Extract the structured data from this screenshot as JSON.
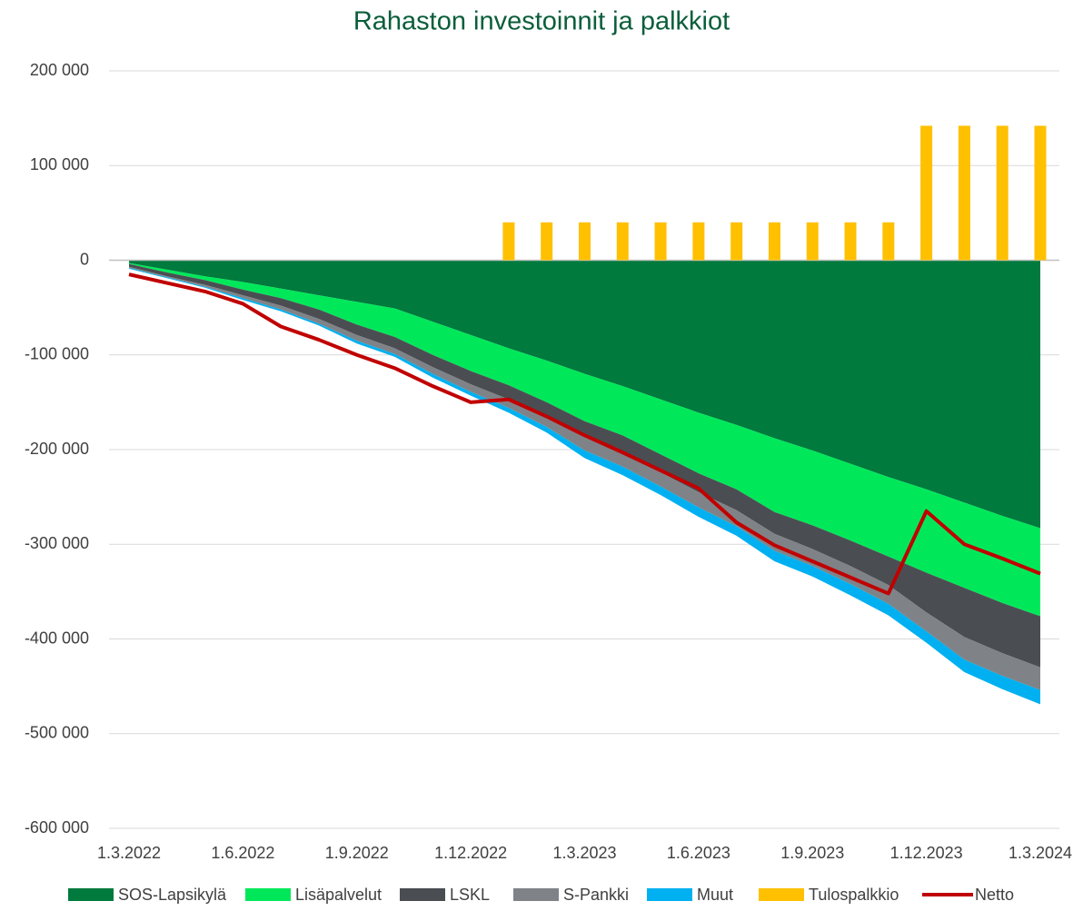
{
  "chart_data": {
    "type": "stacked_area_bar_line",
    "title": "Rahaston investoinnit ja palkkiot",
    "categories": [
      "1.3.2022",
      null,
      null,
      "1.6.2022",
      null,
      null,
      "1.9.2022",
      null,
      null,
      "1.12.2022",
      null,
      null,
      "1.3.2023",
      null,
      null,
      "1.6.2023",
      null,
      null,
      "1.9.2023",
      null,
      null,
      "1.12.2023",
      null,
      null,
      "1.3.2024"
    ],
    "ylim": [
      -600000,
      200000
    ],
    "yticks": [
      {
        "value": -600000,
        "label": "-600 000"
      },
      {
        "value": -500000,
        "label": "-500 000"
      },
      {
        "value": -400000,
        "label": "-400 000"
      },
      {
        "value": -300000,
        "label": "-300 000"
      },
      {
        "value": -200000,
        "label": "-200 000"
      },
      {
        "value": -100000,
        "label": "-100 000"
      },
      0,
      {
        "value": 100000,
        "label": "100 000"
      },
      {
        "value": 200000,
        "label": "200 000"
      }
    ],
    "grid": true,
    "series": [
      {
        "name": "SOS-Lapsikylä",
        "kind": "area",
        "color": "#007a3d",
        "values": [
          -3000,
          -10000,
          -17000,
          -23000,
          -30000,
          -37000,
          -44000,
          -51000,
          -65000,
          -79000,
          -93000,
          -106000,
          -120000,
          -133000,
          -147000,
          -161000,
          -174000,
          -188000,
          -201000,
          -215000,
          -229000,
          -242000,
          -256000,
          -270000,
          -283000
        ]
      },
      {
        "name": "Lisäpalvelut",
        "kind": "area",
        "color": "#00e85a",
        "values": [
          -1000,
          -3000,
          -4000,
          -8000,
          -10000,
          -15000,
          -24000,
          -30000,
          -35000,
          -38000,
          -39000,
          -44000,
          -50000,
          -52000,
          -58000,
          -64000,
          -68000,
          -78000,
          -79000,
          -81000,
          -84000,
          -88000,
          -90000,
          -92000,
          -93000
        ]
      },
      {
        "name": "LSKL",
        "kind": "area",
        "color": "#4a4e52",
        "values": [
          -3000,
          -4000,
          -5000,
          -6000,
          -8000,
          -10000,
          -11000,
          -12000,
          -13000,
          -14000,
          -15000,
          -16000,
          -17000,
          -18000,
          -19000,
          -20000,
          -22000,
          -23000,
          -25000,
          -27000,
          -30000,
          -42000,
          -52000,
          -53000,
          -54000
        ]
      },
      {
        "name": "S-Pankki",
        "kind": "area",
        "color": "#7f8387",
        "values": [
          -1000,
          -1000,
          -2000,
          -3000,
          -4000,
          -5000,
          -6000,
          -6000,
          -7000,
          -8000,
          -9000,
          -10000,
          -14000,
          -15000,
          -15000,
          -16000,
          -17000,
          -18000,
          -18000,
          -19000,
          -20000,
          -20000,
          -24000,
          -24000,
          -24000
        ]
      },
      {
        "name": "Muut",
        "kind": "area",
        "color": "#00b0f0",
        "values": [
          -1000,
          -1000,
          -1000,
          -2000,
          -2000,
          -2000,
          -3000,
          -3000,
          -4000,
          -4000,
          -5000,
          -6000,
          -8000,
          -9000,
          -9000,
          -10000,
          -10000,
          -11000,
          -11000,
          -12000,
          -12000,
          -12000,
          -13000,
          -14000,
          -15000
        ]
      },
      {
        "name": "Tulospalkkio",
        "kind": "bar",
        "color": "#ffc000",
        "values": [
          0,
          0,
          0,
          0,
          0,
          0,
          0,
          0,
          0,
          0,
          40000,
          40000,
          40000,
          40000,
          40000,
          40000,
          40000,
          40000,
          40000,
          40000,
          40000,
          142000,
          142000,
          142000,
          142000
        ]
      },
      {
        "name": "Netto",
        "kind": "line",
        "color": "#c00000",
        "values": [
          -15000,
          -24000,
          -33000,
          -46000,
          -70000,
          -84000,
          -100000,
          -114000,
          -133000,
          -150000,
          -147000,
          -165000,
          -185000,
          -203000,
          -222000,
          -241000,
          -277000,
          -301000,
          -318000,
          -335000,
          -352000,
          -265000,
          -300000,
          -315000,
          -331000
        ]
      }
    ]
  }
}
